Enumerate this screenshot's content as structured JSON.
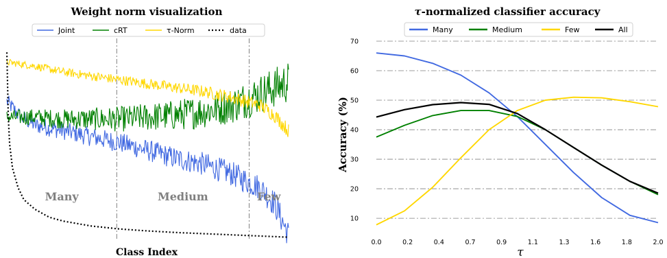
{
  "chart_data": [
    {
      "type": "line",
      "title": "Weight norm visualization",
      "xlabel": "Class Index",
      "ylabel": "",
      "legend_position": "top",
      "grid": false,
      "colors": {
        "Joint": "#4169e1",
        "cRT": "#008000",
        "τ-Norm": "#ffd700",
        "data": "#000000"
      },
      "series": [
        {
          "name": "Joint",
          "style": "solid",
          "x": [
            0,
            0.05,
            0.1,
            0.2,
            0.3,
            0.4,
            0.5,
            0.6,
            0.7,
            0.8,
            0.9,
            0.95,
            1.0
          ],
          "values": [
            0.7,
            0.62,
            0.58,
            0.55,
            0.52,
            0.49,
            0.45,
            0.41,
            0.38,
            0.33,
            0.26,
            0.18,
            0.02
          ]
        },
        {
          "name": "cRT",
          "style": "solid",
          "x": [
            0,
            0.05,
            0.1,
            0.2,
            0.3,
            0.4,
            0.5,
            0.6,
            0.7,
            0.8,
            0.9,
            1.0
          ],
          "values": [
            0.62,
            0.62,
            0.62,
            0.61,
            0.61,
            0.61,
            0.62,
            0.63,
            0.65,
            0.68,
            0.74,
            0.8
          ]
        },
        {
          "name": "τ-Norm",
          "style": "solid",
          "x": [
            0,
            0.1,
            0.2,
            0.3,
            0.4,
            0.5,
            0.6,
            0.7,
            0.8,
            0.9,
            0.95,
            1.0
          ],
          "values": [
            0.9,
            0.88,
            0.85,
            0.83,
            0.81,
            0.79,
            0.77,
            0.75,
            0.72,
            0.68,
            0.63,
            0.55
          ]
        },
        {
          "name": "data",
          "style": "dotted",
          "x": [
            0,
            0.005,
            0.01,
            0.02,
            0.04,
            0.06,
            0.1,
            0.15,
            0.2,
            0.3,
            0.4,
            0.5,
            0.6,
            0.7,
            0.8,
            0.9,
            1.0
          ],
          "values": [
            0.95,
            0.62,
            0.48,
            0.36,
            0.26,
            0.2,
            0.15,
            0.11,
            0.09,
            0.065,
            0.05,
            0.04,
            0.032,
            0.026,
            0.02,
            0.014,
            0.008
          ]
        }
      ],
      "regions": [
        {
          "label": "Many",
          "from": 0,
          "to": 0.39
        },
        {
          "label": "Medium",
          "from": 0.39,
          "to": 0.86
        },
        {
          "label": "Few",
          "from": 0.86,
          "to": 1.0
        }
      ]
    },
    {
      "type": "line",
      "title": "τ-normalized classifier accuracy",
      "xlabel": "τ",
      "ylabel": "Accuracy (%)",
      "legend_position": "top",
      "grid": true,
      "xlim": [
        0.0,
        2.0
      ],
      "ylim": [
        7,
        70
      ],
      "x_ticks": [
        "0.0",
        "0.2",
        "0.4",
        "0.7",
        "0.9",
        "1.1",
        "1.3",
        "1.6",
        "1.8",
        "2.0"
      ],
      "y_ticks": [
        10,
        20,
        30,
        40,
        50,
        60,
        70
      ],
      "colors": {
        "Many": "#4169e1",
        "Medium": "#008000",
        "Few": "#ffd700",
        "All": "#000000"
      },
      "x": [
        0.0,
        0.2,
        0.4,
        0.6,
        0.8,
        1.0,
        1.2,
        1.4,
        1.6,
        1.8,
        2.0
      ],
      "series": [
        {
          "name": "Many",
          "values": [
            66.0,
            65.0,
            62.5,
            58.5,
            52.5,
            44.5,
            35.0,
            25.5,
            17.0,
            11.0,
            8.5
          ]
        },
        {
          "name": "Medium",
          "values": [
            37.5,
            41.5,
            44.8,
            46.5,
            46.5,
            44.5,
            40.0,
            34.0,
            28.0,
            22.5,
            18.0
          ]
        },
        {
          "name": "Few",
          "values": [
            7.8,
            12.5,
            20.5,
            30.5,
            40.0,
            46.5,
            50.0,
            51.0,
            50.8,
            49.5,
            47.8
          ]
        },
        {
          "name": "All",
          "values": [
            44.3,
            46.8,
            48.5,
            49.2,
            48.6,
            45.5,
            40.0,
            34.0,
            28.0,
            22.5,
            18.5
          ]
        }
      ]
    }
  ]
}
